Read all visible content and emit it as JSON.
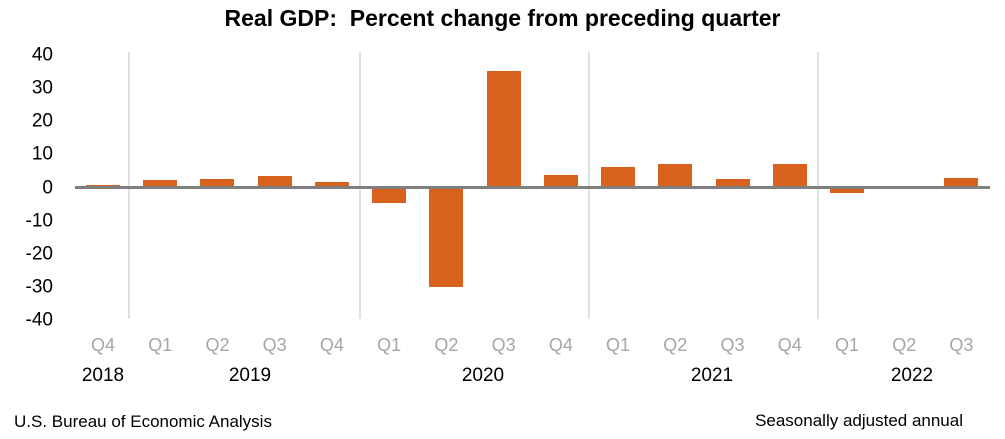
{
  "chart_data": {
    "type": "bar",
    "title": "Real GDP:  Percent change from preceding quarter",
    "xlabel": "",
    "ylabel": "",
    "ylim": [
      -40,
      40
    ],
    "y_ticks": [
      40,
      30,
      20,
      10,
      0,
      -10,
      -20,
      -30,
      -40
    ],
    "grid": "vertical-year-separators",
    "legend_position": "none",
    "categories": [
      "2018 Q4",
      "2019 Q1",
      "2019 Q2",
      "2019 Q3",
      "2019 Q4",
      "2020 Q1",
      "2020 Q2",
      "2020 Q3",
      "2020 Q4",
      "2021 Q1",
      "2021 Q2",
      "2021 Q3",
      "2021 Q4",
      "2022 Q1",
      "2022 Q2",
      "2022 Q3"
    ],
    "values": [
      0.7,
      2.2,
      2.7,
      3.6,
      1.8,
      -4.6,
      -29.9,
      35.3,
      3.9,
      6.3,
      7.0,
      2.7,
      7.0,
      -1.6,
      -0.6,
      2.9
    ],
    "points": [
      {
        "quarter": "Q4",
        "year": "2018",
        "value": 0.7
      },
      {
        "quarter": "Q1",
        "year": "2019",
        "value": 2.2
      },
      {
        "quarter": "Q2",
        "year": "2019",
        "value": 2.7
      },
      {
        "quarter": "Q3",
        "year": "2019",
        "value": 3.6
      },
      {
        "quarter": "Q4",
        "year": "2019",
        "value": 1.8
      },
      {
        "quarter": "Q1",
        "year": "2020",
        "value": -4.6
      },
      {
        "quarter": "Q2",
        "year": "2020",
        "value": -29.9
      },
      {
        "quarter": "Q3",
        "year": "2020",
        "value": 35.3
      },
      {
        "quarter": "Q4",
        "year": "2020",
        "value": 3.9
      },
      {
        "quarter": "Q1",
        "year": "2021",
        "value": 6.3
      },
      {
        "quarter": "Q2",
        "year": "2021",
        "value": 7.0
      },
      {
        "quarter": "Q3",
        "year": "2021",
        "value": 2.7
      },
      {
        "quarter": "Q4",
        "year": "2021",
        "value": 7.0
      },
      {
        "quarter": "Q1",
        "year": "2022",
        "value": -1.6
      },
      {
        "quarter": "Q2",
        "year": "2022",
        "value": -0.6
      },
      {
        "quarter": "Q3",
        "year": "2022",
        "value": 2.9
      }
    ],
    "year_labels": [
      "2018",
      "2019",
      "2020",
      "2021",
      "2022"
    ]
  },
  "colors": {
    "bar": "#d8621d",
    "zero_line": "#7f7f7f",
    "gridline": "#e0e0e0",
    "quarter_label": "#a6a6a6",
    "text": "#000000"
  },
  "footer": {
    "source": "U.S. Bureau of Economic Analysis",
    "note": "Seasonally adjusted annual"
  }
}
